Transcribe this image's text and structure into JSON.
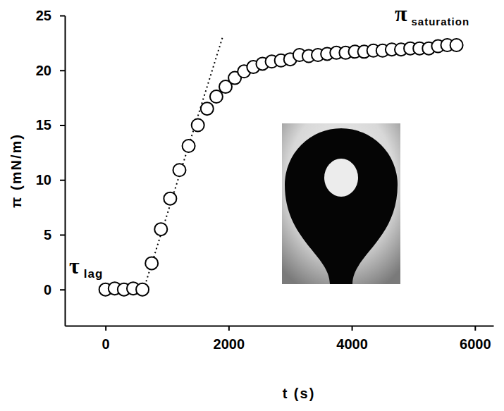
{
  "chart_data": {
    "type": "scatter",
    "x_label": "t (s)",
    "y_label": "π (mN/m)",
    "x": [
      0,
      150,
      300,
      450,
      600,
      750,
      900,
      1050,
      1200,
      1350,
      1500,
      1650,
      1800,
      1950,
      2100,
      2250,
      2400,
      2550,
      2700,
      2850,
      3000,
      3150,
      3300,
      3450,
      3600,
      3750,
      3900,
      4050,
      4200,
      4350,
      4500,
      4650,
      4800,
      4950,
      5100,
      5250,
      5400,
      5550,
      5700
    ],
    "values": [
      0,
      0.1,
      0,
      0.1,
      0,
      2.4,
      5.5,
      8.3,
      10.9,
      13.1,
      15.0,
      16.5,
      17.6,
      18.5,
      19.3,
      19.9,
      20.3,
      20.6,
      20.8,
      20.9,
      21.0,
      21.4,
      21.3,
      21.4,
      21.5,
      21.6,
      21.6,
      21.7,
      21.7,
      21.8,
      21.8,
      21.9,
      21.9,
      22.0,
      22.0,
      22.0,
      22.2,
      22.3,
      22.3
    ],
    "marker": "open-circle",
    "color": "#000000",
    "trend_line": {
      "x": [
        620,
        1900
      ],
      "y": [
        0,
        23
      ],
      "line_style": "dotted"
    },
    "annotations": [
      {
        "text": "τ",
        "subscript": "lag"
      },
      {
        "text": "π",
        "subscript": "saturation"
      }
    ],
    "xlim": [
      -660,
      6300
    ],
    "ylim": [
      -3.3,
      25
    ],
    "xticks": [
      0,
      2000,
      4000,
      6000
    ],
    "yticks": [
      0,
      5,
      10,
      15,
      20,
      25
    ],
    "grid": false
  }
}
